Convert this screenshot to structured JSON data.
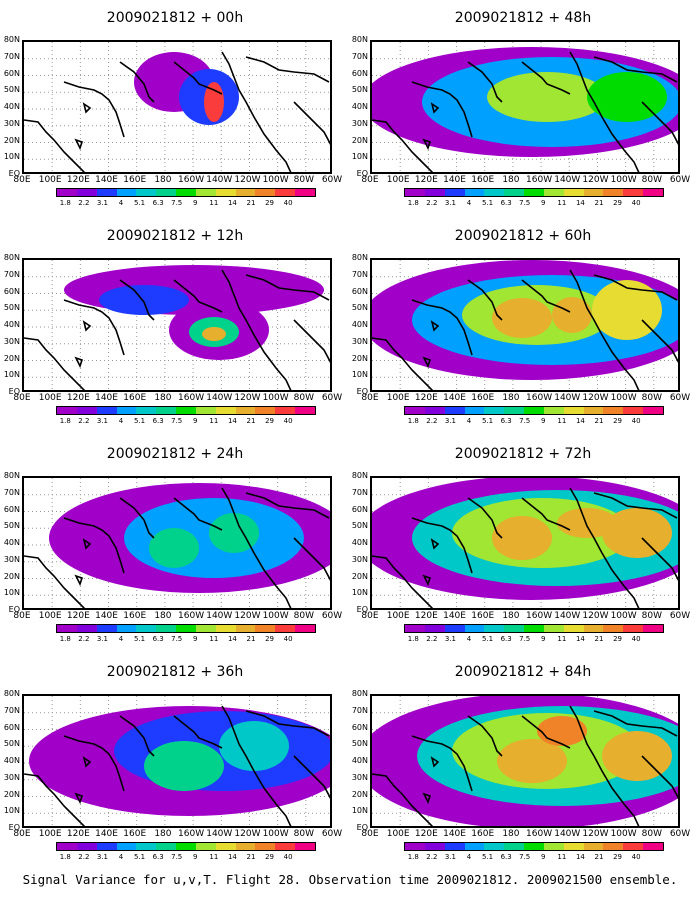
{
  "caption": "Signal Variance for u,v,T. Flight 28. Observation time 2009021812. 2009021500 ensemble.",
  "panels": [
    {
      "title": "2009021812 + 00h",
      "lead": 0
    },
    {
      "title": "2009021812 + 48h",
      "lead": 48
    },
    {
      "title": "2009021812 + 12h",
      "lead": 12
    },
    {
      "title": "2009021812 + 60h",
      "lead": 60
    },
    {
      "title": "2009021812 + 24h",
      "lead": 24
    },
    {
      "title": "2009021812 + 72h",
      "lead": 72
    },
    {
      "title": "2009021812 + 36h",
      "lead": 36
    },
    {
      "title": "2009021812 + 84h",
      "lead": 84
    }
  ],
  "x_axis_labels": [
    "80E",
    "100E",
    "120E",
    "140E",
    "160E",
    "180",
    "160W",
    "140W",
    "120W",
    "100W",
    "80W",
    "60W"
  ],
  "y_axis_labels": [
    "80N",
    "70N",
    "60N",
    "50N",
    "40N",
    "30N",
    "20N",
    "10N",
    "EQ"
  ],
  "colorbar": {
    "labels": [
      "1.8",
      "2.2",
      "3.1",
      "4",
      "5.1",
      "6.3",
      "7.5",
      "9",
      "11",
      "14",
      "21",
      "29",
      "40"
    ],
    "colors": [
      "#a000c8",
      "#8200dc",
      "#1e3cff",
      "#00a0ff",
      "#00c8c8",
      "#00d28c",
      "#00dc00",
      "#a0e632",
      "#e6dc32",
      "#e6af2d",
      "#f08228",
      "#fa3c3c",
      "#f00082"
    ]
  }
}
